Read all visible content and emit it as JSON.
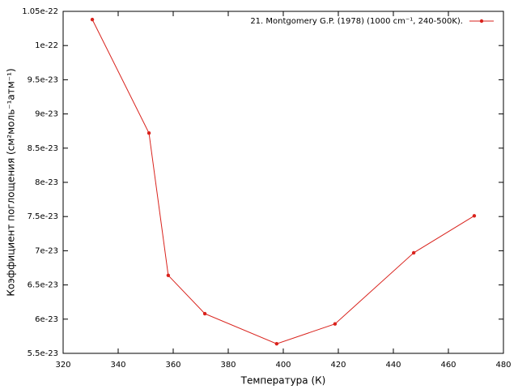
{
  "chart_data": {
    "type": "line",
    "xlabel": "Температура (К)",
    "ylabel": "Коэффициент поглощения (см²моль⁻¹атм⁻¹)",
    "xlim": [
      320,
      480
    ],
    "xticks": [
      320,
      340,
      360,
      380,
      400,
      420,
      440,
      460,
      480
    ],
    "ylim": [
      5.5e-23,
      1.05e-22
    ],
    "yticks": [
      5.5e-23,
      6e-23,
      6.5e-23,
      7e-23,
      7.5e-23,
      8e-23,
      8.5e-23,
      9e-23,
      9.5e-23,
      1e-22,
      1.05e-22
    ],
    "legend": "top-right",
    "series": [
      {
        "name": "21. Montgomery G.P.  (1978) (1000 cm⁻¹, 240-500K).",
        "color": "#d9221c",
        "x": [
          330.6,
          351.2,
          358.2,
          371.5,
          397.6,
          418.8,
          447.4,
          469.4
        ],
        "values": [
          1.038e-22,
          8.72e-23,
          6.64e-23,
          6.08e-23,
          5.64e-23,
          5.93e-23,
          6.97e-23,
          7.51e-23
        ]
      }
    ]
  }
}
